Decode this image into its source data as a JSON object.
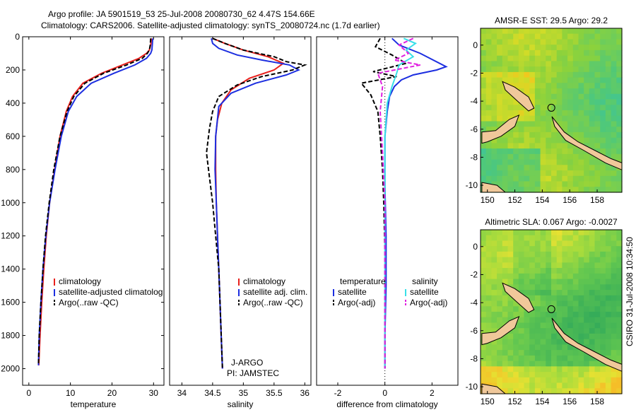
{
  "header": {
    "line1": "Argo profile: JA 5901519_53 25-Jul-2008 20080730_62 4.47S 154.66E",
    "line2": "Climatology: CARS2006. Satellite-adjusted climatology: synTS_20080724.nc (1.7d earlier)"
  },
  "side_label": "CSIRO 31-Jul-2008 10:34:50",
  "colors": {
    "clim": "#e8201c",
    "sat_t": "#1c2ee0",
    "argo_t": "#000000",
    "sat_s": "#38e0e8",
    "argo_s": "#e020e0"
  },
  "chart_data": [
    {
      "type": "line",
      "xlabel": "temperature",
      "ylabel": "",
      "xlim": [
        -1.5,
        32.5
      ],
      "ylim": [
        2100,
        0
      ],
      "xticks": [
        0,
        10,
        20,
        30
      ],
      "yticks": [
        0,
        200,
        400,
        600,
        800,
        1000,
        1200,
        1400,
        1600,
        1800,
        2000
      ],
      "legend": [
        "climatology",
        "satellite-adjusted climatolog",
        "Argo(..raw -QC)"
      ],
      "series": [
        {
          "name": "climatology",
          "color": "#e8201c",
          "dash": "",
          "x": [
            29.5,
            29.3,
            29.0,
            28.3,
            26.5,
            22.5,
            17.5,
            13.0,
            10.5,
            9.0,
            7.5,
            6.2,
            5.0,
            4.2,
            3.6,
            3.1,
            2.7,
            2.4
          ],
          "y": [
            10,
            50,
            80,
            100,
            130,
            170,
            220,
            280,
            360,
            450,
            600,
            800,
            1000,
            1200,
            1400,
            1600,
            1800,
            1980
          ]
        },
        {
          "name": "satellite-adjusted climatology",
          "color": "#1c2ee0",
          "dash": "",
          "x": [
            29.8,
            29.7,
            29.6,
            29.3,
            28.3,
            25.5,
            20.5,
            15.0,
            11.5,
            9.5,
            7.8,
            6.3,
            5.0,
            4.1,
            3.4,
            2.9,
            2.5,
            2.3
          ],
          "y": [
            10,
            50,
            80,
            100,
            130,
            170,
            220,
            280,
            360,
            450,
            600,
            800,
            1000,
            1200,
            1400,
            1600,
            1800,
            1980
          ]
        },
        {
          "name": "Argo(..raw -QC)",
          "color": "#000000",
          "dash": "6,3",
          "x": [
            29.3,
            29.2,
            29.0,
            28.5,
            27.3,
            23.5,
            18.0,
            13.5,
            10.8,
            9.2,
            7.5,
            6.0,
            4.9,
            4.0,
            3.4,
            2.9,
            2.5,
            2.3
          ],
          "y": [
            10,
            50,
            80,
            100,
            130,
            170,
            220,
            280,
            360,
            450,
            600,
            800,
            1000,
            1200,
            1400,
            1600,
            1800,
            1980
          ]
        }
      ]
    },
    {
      "type": "line",
      "xlabel": "salinity",
      "xlim": [
        33.8,
        36.1
      ],
      "ylim": [
        2100,
        0
      ],
      "xticks": [
        34,
        34.5,
        35,
        35.5,
        36
      ],
      "legend": [
        "climatology",
        "satellite adj. clim.",
        "Argo(..raw -QC)"
      ],
      "annotation": [
        "J-ARGO",
        "PI: JAMSTEC"
      ],
      "series": [
        {
          "name": "climatology",
          "color": "#e8201c",
          "dash": "",
          "x": [
            34.5,
            34.7,
            35.0,
            35.4,
            35.65,
            35.5,
            35.1,
            34.8,
            34.65,
            34.58,
            34.55,
            34.55,
            34.56,
            34.58,
            34.6,
            34.62,
            34.64,
            34.66
          ],
          "y": [
            10,
            40,
            80,
            120,
            160,
            200,
            250,
            320,
            400,
            500,
            600,
            800,
            1000,
            1200,
            1400,
            1600,
            1800,
            2000
          ]
        },
        {
          "name": "satellite adj. clim.",
          "color": "#1c2ee0",
          "dash": "",
          "x": [
            34.48,
            34.5,
            34.6,
            34.9,
            35.3,
            35.75,
            35.9,
            35.7,
            35.2,
            34.8,
            34.6,
            34.55,
            34.54,
            34.56,
            34.58,
            34.6,
            34.62,
            34.64,
            34.66
          ],
          "y": [
            10,
            40,
            70,
            110,
            140,
            170,
            200,
            230,
            280,
            340,
            420,
            600,
            800,
            1000,
            1200,
            1400,
            1600,
            1800,
            2000
          ]
        },
        {
          "name": "Argo(..raw -QC)",
          "color": "#000000",
          "dash": "6,3",
          "x": [
            34.5,
            34.7,
            35.0,
            35.5,
            35.7,
            36.0,
            35.8,
            35.3,
            34.9,
            34.6,
            34.5,
            34.45,
            34.4,
            34.45,
            34.5,
            34.55,
            34.6,
            34.63,
            34.66
          ],
          "y": [
            10,
            40,
            80,
            120,
            150,
            170,
            200,
            240,
            290,
            360,
            450,
            550,
            700,
            850,
            1000,
            1200,
            1400,
            1700,
            2000
          ]
        }
      ]
    },
    {
      "type": "line",
      "xlabel": "difference from climatology",
      "xlim": [
        -2.9,
        3.1
      ],
      "ylim": [
        2100,
        0
      ],
      "xticks": [
        -2,
        0,
        2
      ],
      "legend_titles": [
        "temperature",
        "salinity"
      ],
      "legend": [
        "satellite",
        "Argo(-adj)",
        "satellite",
        "Argo(-adj)"
      ],
      "series": [
        {
          "name": "satellite",
          "group": "temperature",
          "color": "#1c2ee0",
          "dash": "",
          "x": [
            0.3,
            0.6,
            1.5,
            2.6,
            2.2,
            1.2,
            0.7,
            0.4,
            0.2,
            0.1,
            0.0,
            0.0,
            0.05,
            0.05,
            0.0,
            0.0
          ],
          "y": [
            10,
            50,
            100,
            180,
            200,
            230,
            260,
            300,
            360,
            450,
            600,
            900,
            1200,
            1500,
            1800,
            2000
          ]
        },
        {
          "name": "Argo(-adj)",
          "group": "temperature",
          "color": "#000000",
          "dash": "6,3",
          "x": [
            -0.2,
            -0.4,
            0.3,
            0.9,
            -0.5,
            0.5,
            -1.0,
            -0.6,
            -0.3,
            -0.2,
            -0.1,
            -0.05,
            0.0,
            0.0,
            0.0
          ],
          "y": [
            10,
            60,
            110,
            160,
            210,
            240,
            280,
            350,
            450,
            600,
            800,
            1000,
            1300,
            1600,
            2000
          ]
        },
        {
          "name": "satellite",
          "group": "salinity",
          "color": "#38e0e8",
          "dash": "",
          "x": [
            0.8,
            1.3,
            0.9,
            1.2,
            0.6,
            0.5,
            0.3,
            0.1,
            0.0,
            0.0,
            0.0
          ],
          "y": [
            10,
            40,
            80,
            120,
            170,
            220,
            300,
            400,
            600,
            1000,
            2000
          ]
        },
        {
          "name": "Argo(-adj)",
          "group": "salinity",
          "color": "#e020e0",
          "dash": "6,3",
          "x": [
            1.2,
            0.6,
            1.0,
            0.4,
            1.5,
            -0.3,
            -0.1,
            -0.2,
            -0.1,
            0.0,
            0.0
          ],
          "y": [
            10,
            50,
            100,
            140,
            170,
            220,
            300,
            450,
            700,
            1000,
            2000
          ]
        }
      ]
    },
    {
      "type": "heatmap",
      "title": "AMSR-E SST: 29.5 Argo: 29.2",
      "xlim": [
        149.5,
        159.8
      ],
      "ylim": [
        -10.5,
        1.2
      ],
      "xticks": [
        150,
        152,
        154,
        156,
        158
      ],
      "yticks": [
        0,
        -2,
        -4,
        -6,
        -8,
        -10
      ],
      "marker": [
        154.66,
        -4.47
      ]
    },
    {
      "type": "heatmap",
      "title": "Altimetric SLA: 0.067 Argo: -0.0027",
      "xlim": [
        149.5,
        159.8
      ],
      "ylim": [
        -10.5,
        1.2
      ],
      "xticks": [
        150,
        152,
        154,
        156,
        158
      ],
      "yticks": [
        0,
        -2,
        -4,
        -6,
        -8,
        -10
      ],
      "marker": [
        154.66,
        -4.47
      ]
    }
  ]
}
